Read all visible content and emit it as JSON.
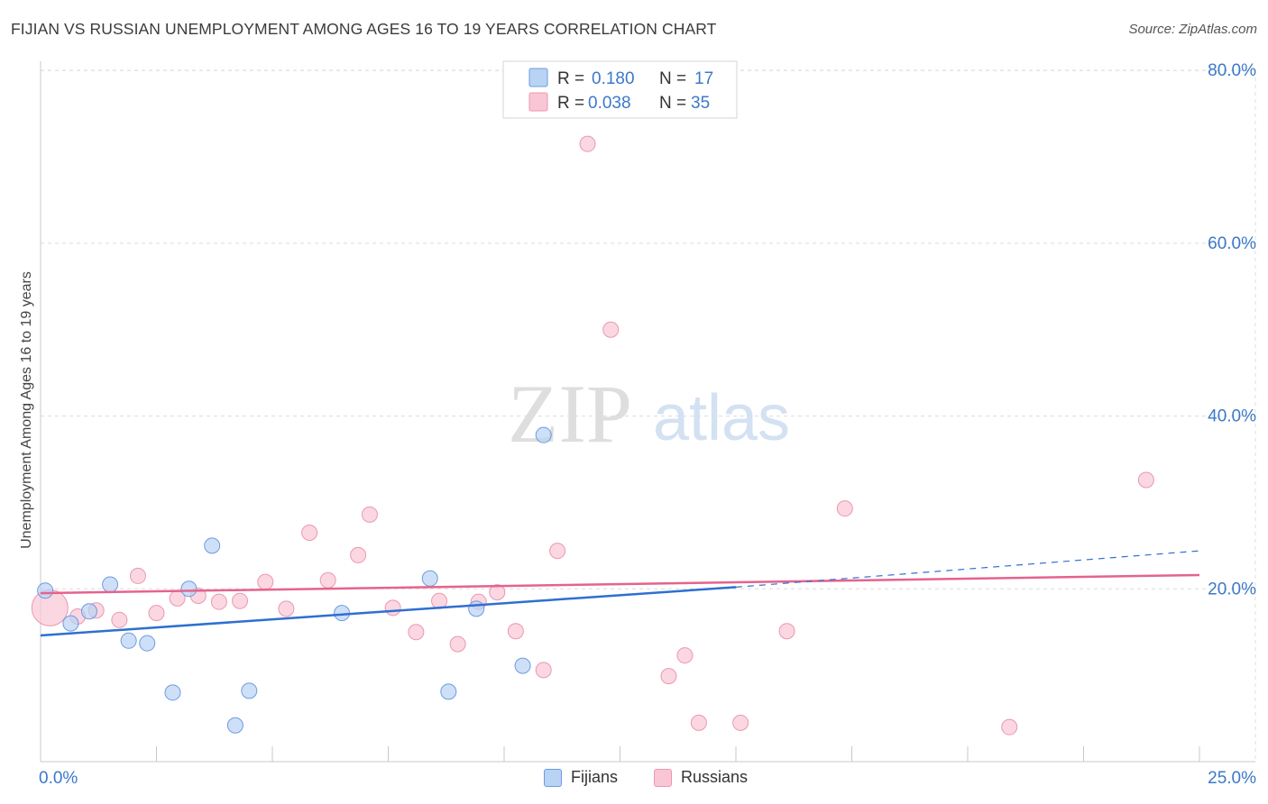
{
  "header": {
    "title": "FIJIAN VS RUSSIAN UNEMPLOYMENT AMONG AGES 16 TO 19 YEARS CORRELATION CHART",
    "source": "Source: ZipAtlas.com"
  },
  "colors": {
    "fijians_fill": "#b9d3f4",
    "fijians_stroke": "#6d9be0",
    "fijians_line": "#2f6fd0",
    "russians_fill": "#f9c6d5",
    "russians_stroke": "#ec97b1",
    "russians_line": "#e5638c",
    "tick_label": "#3d78c8",
    "grid": "#dcdcdc"
  },
  "legend": {
    "rows": [
      {
        "r_label": "R = ",
        "r_value": "0.180",
        "n_label": "N = ",
        "n_value": "17"
      },
      {
        "r_label": "R = ",
        "r_value": "0.038",
        "n_label": "N = ",
        "n_value": "35"
      }
    ]
  },
  "watermark": {
    "zip": "ZIP",
    "atlas": "atlas"
  },
  "chart_data": {
    "type": "scatter",
    "title": "FIJIAN VS RUSSIAN UNEMPLOYMENT AMONG AGES 16 TO 19 YEARS CORRELATION CHART",
    "xlabel": "",
    "ylabel": "Unemployment Among Ages 16 to 19 years",
    "xlim": [
      0,
      25
    ],
    "ylim": [
      0,
      80
    ],
    "x_tick_labels": [
      "0.0%",
      "25.0%"
    ],
    "y_ticks": [
      20,
      40,
      60,
      80
    ],
    "y_tick_labels": [
      "20.0%",
      "40.0%",
      "60.0%",
      "80.0%"
    ],
    "grid": true,
    "series": [
      {
        "name": "Fijians",
        "r": 0.18,
        "n": 17,
        "points": [
          [
            0.1,
            19.8
          ],
          [
            0.65,
            16.0
          ],
          [
            1.05,
            17.4
          ],
          [
            1.5,
            20.5
          ],
          [
            1.9,
            14.0
          ],
          [
            2.3,
            13.7
          ],
          [
            2.85,
            8.0
          ],
          [
            3.2,
            20.0
          ],
          [
            3.7,
            25.0
          ],
          [
            4.2,
            4.2
          ],
          [
            4.5,
            8.2
          ],
          [
            6.5,
            17.2
          ],
          [
            8.4,
            21.2
          ],
          [
            8.8,
            8.1
          ],
          [
            9.4,
            17.7
          ],
          [
            10.4,
            11.1
          ],
          [
            10.85,
            37.8
          ]
        ],
        "trend": {
          "x": [
            0,
            15
          ],
          "y": [
            14.6,
            20.2
          ]
        },
        "trend_dashed": {
          "x": [
            15,
            25
          ],
          "y": [
            20.2,
            24.4
          ]
        }
      },
      {
        "name": "Russians",
        "r": 0.038,
        "n": 35,
        "points": [
          [
            0.2,
            17.8
          ],
          [
            0.8,
            16.8
          ],
          [
            1.2,
            17.5
          ],
          [
            1.7,
            16.4
          ],
          [
            2.1,
            21.5
          ],
          [
            2.5,
            17.2
          ],
          [
            2.95,
            18.9
          ],
          [
            3.4,
            19.2
          ],
          [
            3.85,
            18.5
          ],
          [
            4.3,
            18.6
          ],
          [
            4.85,
            20.8
          ],
          [
            5.3,
            17.7
          ],
          [
            5.8,
            26.5
          ],
          [
            6.2,
            21.0
          ],
          [
            6.85,
            23.9
          ],
          [
            7.1,
            28.6
          ],
          [
            7.6,
            17.8
          ],
          [
            8.1,
            15.0
          ],
          [
            8.6,
            18.6
          ],
          [
            9.0,
            13.6
          ],
          [
            9.45,
            18.5
          ],
          [
            9.85,
            19.6
          ],
          [
            10.25,
            15.1
          ],
          [
            10.85,
            10.6
          ],
          [
            11.15,
            24.4
          ],
          [
            11.8,
            71.5
          ],
          [
            12.3,
            50.0
          ],
          [
            13.55,
            9.9
          ],
          [
            13.9,
            12.3
          ],
          [
            14.2,
            4.5
          ],
          [
            15.1,
            4.5
          ],
          [
            16.1,
            15.1
          ],
          [
            17.35,
            29.3
          ],
          [
            20.9,
            4.0
          ],
          [
            23.85,
            32.6
          ]
        ],
        "trend": {
          "x": [
            0,
            25
          ],
          "y": [
            19.5,
            21.6
          ]
        }
      }
    ]
  },
  "bottom_legend": {
    "fijians": "Fijians",
    "russians": "Russians"
  }
}
